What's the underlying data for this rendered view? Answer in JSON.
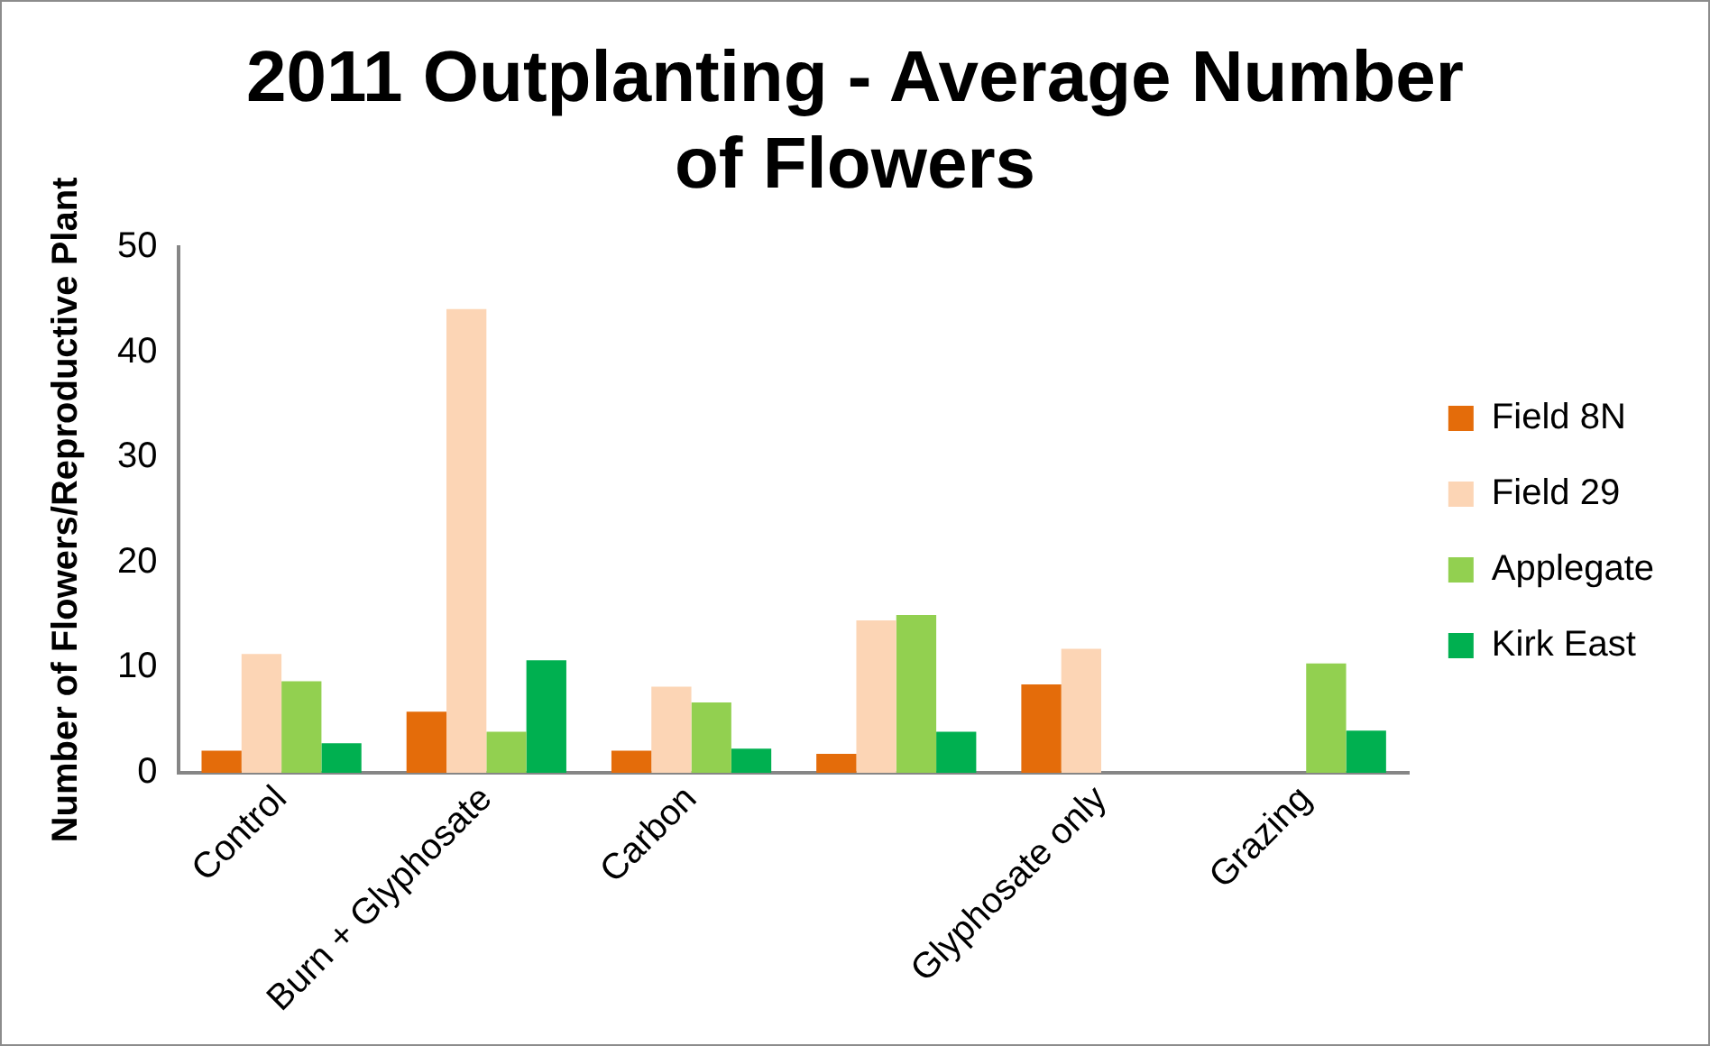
{
  "chart_data": {
    "type": "bar",
    "title": "2011 Outplanting - Average Number of Flowers",
    "ylabel": "Number of Flowers/Reproductive Plant",
    "categories": [
      "Control",
      "Burn + Glyphosate",
      "Carbon",
      null,
      "Glyphosate only",
      "Grazing"
    ],
    "series": [
      {
        "name": "Field 8N",
        "color": "#e46c0a",
        "values": [
          2.1,
          5.8,
          2.1,
          1.8,
          8.4,
          null
        ]
      },
      {
        "name": "Field 29",
        "color": "#fcd5b5",
        "values": [
          11.3,
          44.1,
          8.2,
          14.5,
          11.8,
          null
        ]
      },
      {
        "name": "Applegate",
        "color": "#92d050",
        "values": [
          8.7,
          3.9,
          6.7,
          15.0,
          null,
          10.4
        ]
      },
      {
        "name": "Kirk East",
        "color": "#00b050",
        "values": [
          2.8,
          10.7,
          2.3,
          3.9,
          null,
          4.0
        ]
      }
    ],
    "ylim": [
      0,
      50
    ],
    "yticks": [
      0,
      10,
      20,
      30,
      40,
      50
    ],
    "grid": false,
    "legend": "right"
  }
}
